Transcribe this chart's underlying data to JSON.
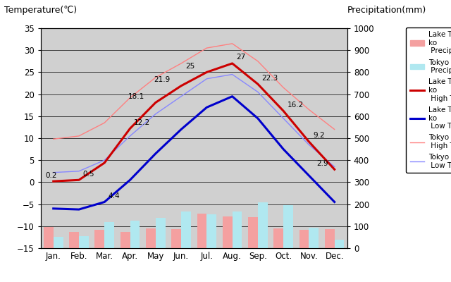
{
  "months": [
    "Jan.",
    "Feb.",
    "Mar.",
    "Apr.",
    "May",
    "Jun.",
    "Jul.",
    "Aug.",
    "Sep.",
    "Oct.",
    "Nov.",
    "Dec."
  ],
  "lake_high_temp": [
    0.2,
    0.5,
    4.4,
    12.2,
    18.1,
    21.9,
    25.0,
    27.0,
    22.3,
    16.2,
    9.2,
    2.9
  ],
  "lake_low_temp": [
    -6.0,
    -6.2,
    -4.5,
    0.5,
    6.5,
    12.0,
    17.0,
    19.5,
    14.5,
    7.5,
    1.5,
    -4.5
  ],
  "tokyo_high_temp": [
    9.8,
    10.5,
    13.5,
    19.2,
    23.8,
    27.0,
    30.5,
    31.5,
    27.5,
    21.5,
    16.5,
    12.0
  ],
  "tokyo_low_temp": [
    2.2,
    2.5,
    5.0,
    10.5,
    15.5,
    19.5,
    23.5,
    24.5,
    20.5,
    14.5,
    8.5,
    3.5
  ],
  "lake_precip_mm": [
    97,
    75,
    82,
    73,
    89,
    87,
    157,
    145,
    142,
    91,
    84,
    88
  ],
  "tokyo_precip_mm": [
    52,
    56,
    117,
    124,
    137,
    168,
    153,
    168,
    209,
    197,
    92,
    39
  ],
  "title_left": "Temperature(℃)",
  "title_right": "Precipitation(mm)",
  "ylim_temp": [
    -15,
    35
  ],
  "ylim_precip": [
    0,
    1000
  ],
  "bg_color": "#d0d0d0",
  "lake_precip_color": "#f4a0a0",
  "tokyo_precip_color": "#b0e8f0",
  "lake_high_color": "#cc0000",
  "lake_low_color": "#0000cc",
  "tokyo_high_color": "#ff8080",
  "tokyo_low_color": "#8888ff",
  "annot_lake_high": {
    "0": [
      "0.2",
      -8,
      4
    ],
    "1": [
      "0.5",
      4,
      4
    ],
    "3": [
      "12.2",
      4,
      4
    ],
    "4": [
      "18.1",
      -28,
      4
    ],
    "5": [
      "21.9",
      -28,
      4
    ],
    "6": [
      "25",
      -22,
      4
    ],
    "7": [
      "27",
      4,
      4
    ],
    "8": [
      "22.3",
      4,
      4
    ],
    "9": [
      "16.2",
      4,
      4
    ],
    "10": [
      "9.2",
      4,
      4
    ],
    "11": [
      "2.9",
      -18,
      4
    ]
  },
  "annot_lake_low": {
    "2": [
      "4.4",
      4,
      4
    ]
  }
}
